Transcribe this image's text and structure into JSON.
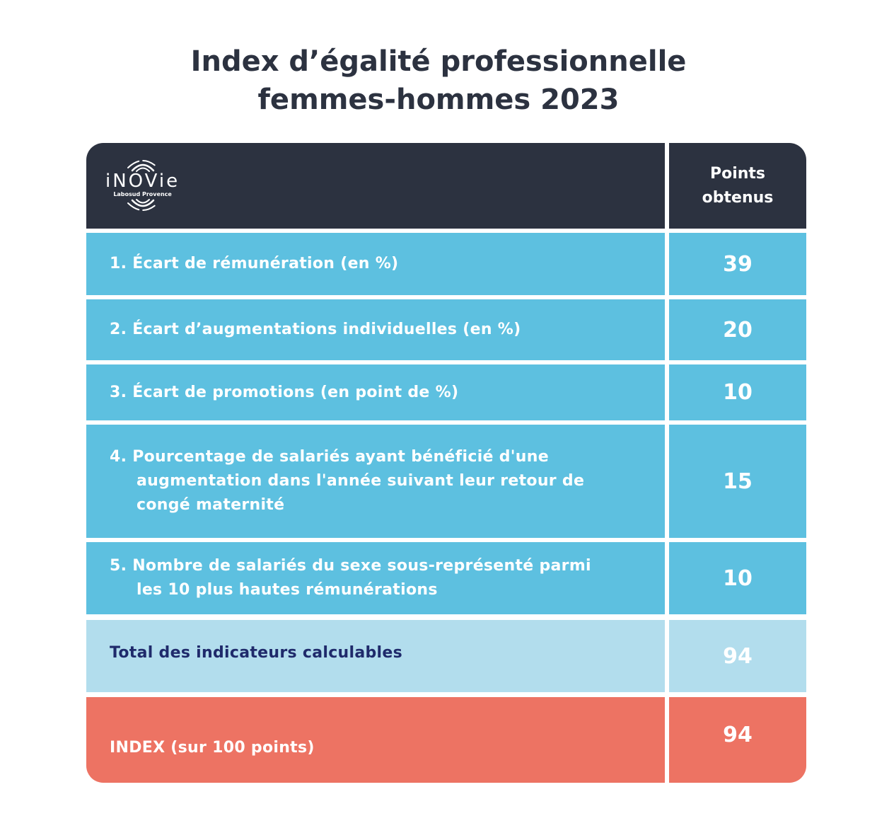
{
  "title": {
    "line1": "Index d’égalité professionnelle",
    "line2": "femmes-hommes 2023"
  },
  "logo": {
    "name": "iNOVie",
    "subtitle": "Labosud Provence"
  },
  "table": {
    "points_header_line1": "Points",
    "points_header_line2": "obtenus",
    "rows": [
      {
        "label": "1. Écart de rémunération (en %)",
        "points": "39"
      },
      {
        "label": "2. Écart d’augmentations individuelles (en %)",
        "points": "20"
      },
      {
        "label": "3. Écart de promotions (en point de %)",
        "points": "10"
      },
      {
        "label_line1": "4. Pourcentage de salariés ayant bénéficié d'une",
        "label_line2": "augmentation dans l'année suivant leur retour de",
        "label_line3": "congé maternité",
        "points": "15"
      },
      {
        "label_line1": "5. Nombre de salariés du sexe sous-représenté parmi",
        "label_line2": "les 10 plus hautes rémunérations",
        "points": "10"
      }
    ],
    "total": {
      "label": "Total des indicateurs calculables",
      "points": "94"
    },
    "index": {
      "label": "INDEX (sur 100 points)",
      "points": "94"
    }
  },
  "colors": {
    "header": "#2c3240",
    "indicator_rows": "#5dc0e0",
    "total_row": "#b2dded",
    "index_row": "#ed7363",
    "total_label": "#1f2a6b"
  }
}
